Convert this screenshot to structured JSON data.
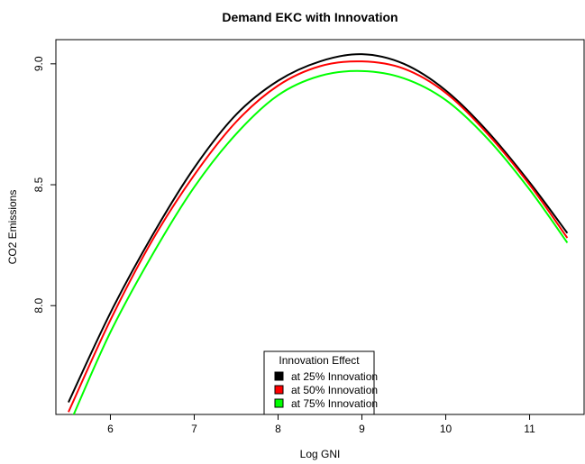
{
  "chart_data": {
    "type": "line",
    "title": "Demand EKC with Innovation",
    "xlabel": "Log GNI",
    "ylabel": "CO2 Emissions",
    "xlim": [
      5.35,
      11.65
    ],
    "ylim": [
      7.55,
      9.1
    ],
    "xticks": [
      6,
      7,
      8,
      9,
      10,
      11
    ],
    "yticks": [
      8.0,
      8.5,
      9.0
    ],
    "ytick_labels": [
      "8.0",
      "8.5",
      "9.0"
    ],
    "grid": false,
    "legend": {
      "title": "Innovation Effect",
      "placement": "bottom-center"
    },
    "series": [
      {
        "name": "at 25% Innovation",
        "color": "#000000",
        "x": [
          5.5,
          6.0,
          6.5,
          7.0,
          7.5,
          8.0,
          8.5,
          9.0,
          9.5,
          10.0,
          10.5,
          11.0,
          11.45
        ],
        "y": [
          7.6,
          7.97,
          8.29,
          8.57,
          8.79,
          8.93,
          9.01,
          9.04,
          9.0,
          8.89,
          8.72,
          8.51,
          8.3
        ]
      },
      {
        "name": "at 50% Innovation",
        "color": "#ff0000",
        "x": [
          5.5,
          6.0,
          6.5,
          7.0,
          7.5,
          8.0,
          8.5,
          9.0,
          9.5,
          10.0,
          10.5,
          11.0,
          11.45
        ],
        "y": [
          7.56,
          7.94,
          8.27,
          8.54,
          8.76,
          8.91,
          8.99,
          9.01,
          8.98,
          8.88,
          8.71,
          8.5,
          8.28
        ]
      },
      {
        "name": "at 75% Innovation",
        "color": "#00ff00",
        "x": [
          5.55,
          6.0,
          6.5,
          7.0,
          7.5,
          8.0,
          8.5,
          9.0,
          9.5,
          10.0,
          10.5,
          11.0,
          11.45
        ],
        "y": [
          7.54,
          7.89,
          8.21,
          8.49,
          8.71,
          8.87,
          8.95,
          8.97,
          8.94,
          8.85,
          8.69,
          8.48,
          8.26
        ]
      }
    ]
  }
}
